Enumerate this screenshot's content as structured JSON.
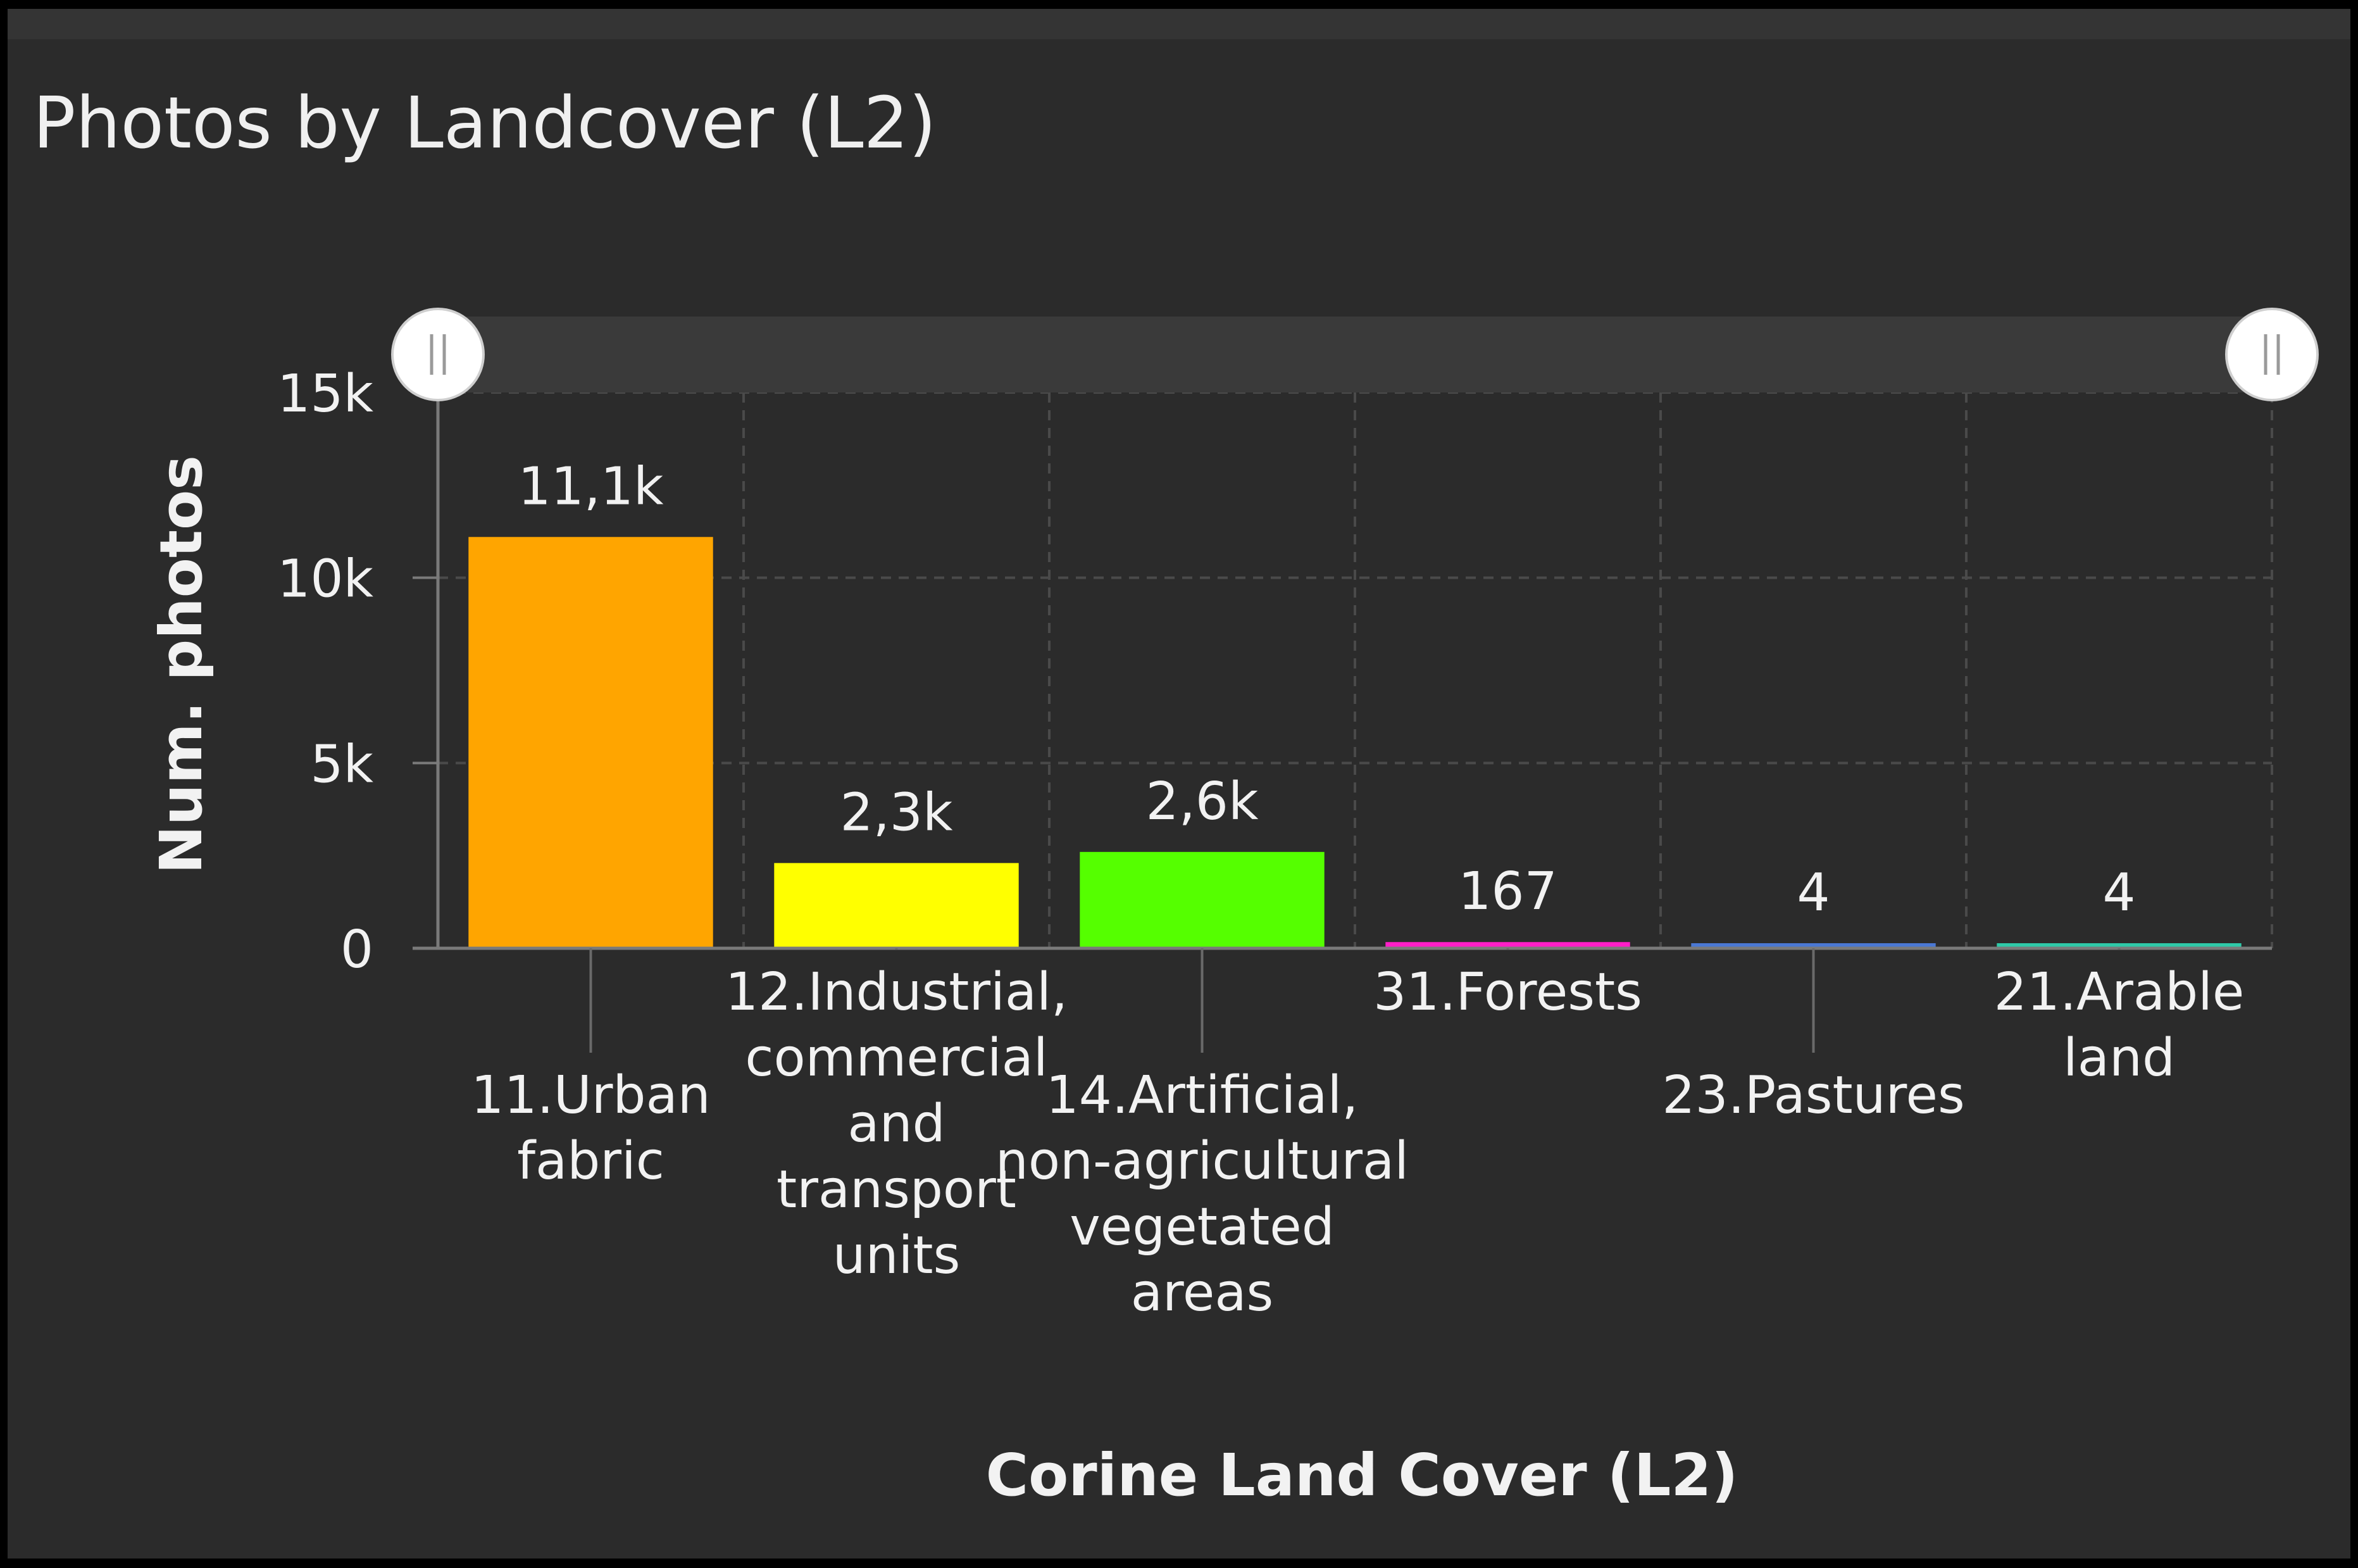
{
  "chart_data": {
    "type": "bar",
    "title": "Photos by Landcover (L2)",
    "xlabel": "Corine Land Cover (L2)",
    "ylabel": "Num. photos",
    "ylim": [
      0,
      15000
    ],
    "y_ticks": [
      {
        "value": 0,
        "label": "0"
      },
      {
        "value": 5000,
        "label": "5k"
      },
      {
        "value": 10000,
        "label": "10k"
      },
      {
        "value": 15000,
        "label": "15k"
      }
    ],
    "grid": true,
    "range_slider": true,
    "categories": [
      "11.Urban fabric",
      "12.Industrial, commercial and transport units",
      "14.Artificial, non-agricultural vegetated areas",
      "31.Forests",
      "23.Pastures",
      "21.Arable land"
    ],
    "category_label_lines": [
      [
        "11.Urban",
        "fabric"
      ],
      [
        "12.Industrial,",
        "commercial",
        "and",
        "transport",
        "units"
      ],
      [
        "14.Artificial,",
        "non-agricultural",
        "vegetated",
        "areas"
      ],
      [
        "31.Forests"
      ],
      [
        "23.Pastures"
      ],
      [
        "21.Arable",
        "land"
      ]
    ],
    "values": [
      11100,
      2300,
      2600,
      167,
      4,
      4
    ],
    "data_labels": [
      "11,1k",
      "2,3k",
      "2,6k",
      "167",
      "4",
      "4"
    ],
    "colors": [
      "#ffa500",
      "#ffff00",
      "#55ff00",
      "#ff1ec8",
      "#4a78d4",
      "#2ec9a8"
    ]
  }
}
